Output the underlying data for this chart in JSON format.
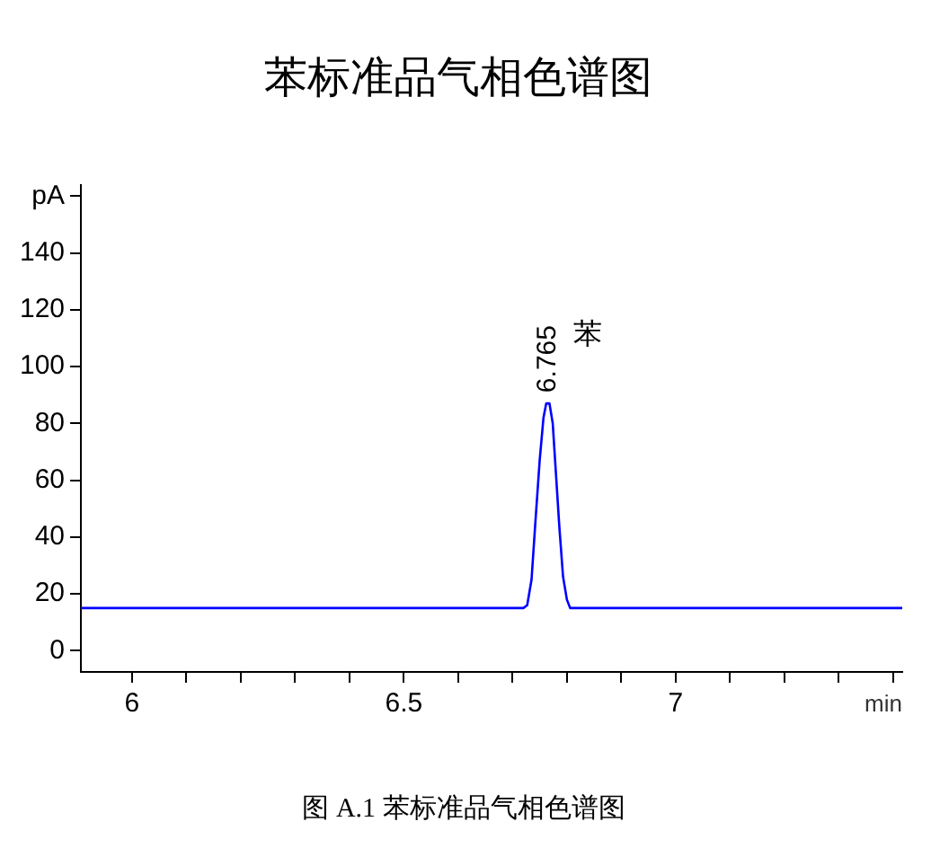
{
  "chart_data": {
    "type": "line",
    "title": "苯标准品气相色谱图",
    "xlabel": "min",
    "series": [
      {
        "color": "#0000ff",
        "x": [
          5.906,
          6.7,
          6.72,
          6.727,
          6.735,
          6.742,
          6.75,
          6.757,
          6.762,
          6.768,
          6.774,
          6.779,
          6.786,
          6.793,
          6.8,
          6.806,
          6.811,
          6.83,
          7.417
        ],
        "values": [
          15,
          15,
          15,
          16,
          25,
          45,
          67,
          82,
          87,
          87,
          80,
          65,
          44,
          26,
          18,
          15,
          15,
          15,
          15
        ]
      }
    ],
    "xlim": [
      5.906,
      7.417
    ],
    "xticks": [
      6,
      {
        "value": 6.1,
        "label": null
      },
      {
        "value": 6.2,
        "label": null
      },
      {
        "value": 6.3,
        "label": null
      },
      {
        "value": 6.4,
        "label": null
      },
      6.5,
      {
        "value": 6.6,
        "label": null
      },
      {
        "value": 6.7,
        "label": null
      },
      {
        "value": 6.8,
        "label": null
      },
      {
        "value": 6.9,
        "label": null
      },
      7,
      {
        "value": 7.1,
        "label": null
      },
      {
        "value": 7.2,
        "label": null
      },
      {
        "value": 7.3,
        "label": null
      },
      {
        "value": 7.4,
        "label": null
      }
    ],
    "ylim": [
      -7.5,
      164
    ],
    "yticks": [
      0,
      20,
      40,
      60,
      80,
      100,
      120,
      140,
      {
        "value": 160,
        "label": "pA"
      }
    ],
    "grid": false,
    "legend": false,
    "marker": "none",
    "line_style": "solid",
    "annotations": [
      {
        "text": "6.765",
        "x": 6.765,
        "y": 87
      },
      {
        "text": "苯",
        "x": 6.765,
        "y": 87
      },
      "图 A.1 苯标准品气相色谱图"
    ]
  }
}
